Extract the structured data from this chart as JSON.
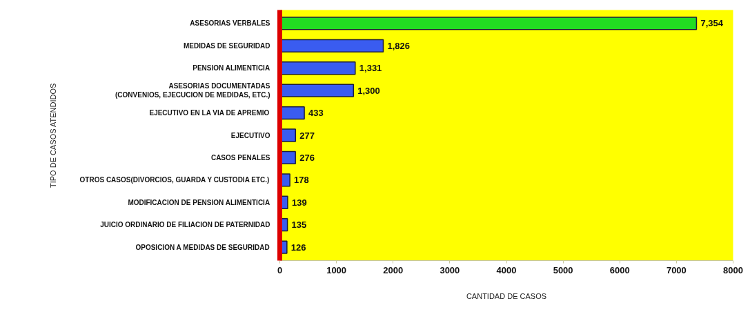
{
  "chart_data": {
    "type": "bar",
    "orientation": "horizontal",
    "xlabel": "CANTIDAD DE CASOS",
    "ylabel": "TIPO DE CASOS ATENDIDOS",
    "categories": [
      "ASESORIAS VERBALES",
      "MEDIDAS DE SEGURIDAD",
      "PENSION ALIMENTICIA",
      "ASESORIAS DOCUMENTADAS\n(CONVENIOS, EJECUCION DE MEDIDAS, ETC.)",
      "EJECUTIVO EN LA VIA DE APREMIO",
      "EJECUTIVO",
      "CASOS PENALES",
      "OTROS CASOS(DIVORCIOS, GUARDA Y CUSTODIA ETC.)",
      "MODIFICACION DE PENSION ALIMENTICIA",
      "JUICIO ORDINARIO DE FILIACION DE PATERNIDAD",
      "OPOSICION A MEDIDAS DE SEGURIDAD"
    ],
    "values": [
      7354,
      1826,
      1331,
      1300,
      433,
      277,
      276,
      178,
      139,
      135,
      126
    ],
    "value_labels": [
      "7,354",
      "1,826",
      "1,331",
      "1,300",
      "433",
      "277",
      "276",
      "178",
      "139",
      "135",
      "126"
    ],
    "colors": [
      "#22dd22",
      "#3a5cf0",
      "#3a5cf0",
      "#3a5cf0",
      "#3a5cf0",
      "#3a5cf0",
      "#3a5cf0",
      "#3a5cf0",
      "#3a5cf0",
      "#3a5cf0",
      "#3a5cf0"
    ],
    "xlim": [
      0,
      8000
    ],
    "xticks": [
      0,
      1000,
      2000,
      3000,
      4000,
      5000,
      6000,
      7000,
      8000
    ],
    "grid": false
  }
}
